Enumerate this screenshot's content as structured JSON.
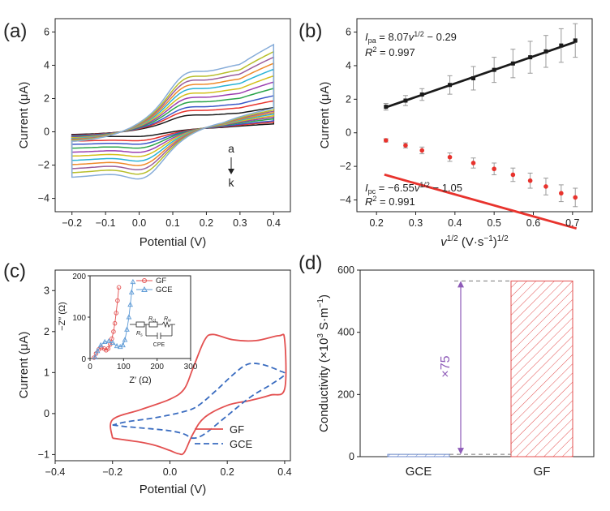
{
  "panels": {
    "a": {
      "label": "(a)"
    },
    "b": {
      "label": "(b)"
    },
    "c": {
      "label": "(c)"
    },
    "d": {
      "label": "(d)"
    }
  },
  "chart_data": [
    {
      "panel": "a",
      "type": "line",
      "xlabel": "Potential (V)",
      "ylabel": "Current (μA)",
      "xlim": [
        -0.25,
        0.45
      ],
      "ylim": [
        -4.8,
        6.8
      ],
      "xticks": [
        "−0.2",
        "−0.1",
        "0.0",
        "0.1",
        "0.2",
        "0.3",
        "0.4"
      ],
      "xtick_values": [
        -0.2,
        -0.1,
        0.0,
        0.1,
        0.2,
        0.3,
        0.4
      ],
      "yticks": [
        "−4",
        "−2",
        "0",
        "2",
        "4",
        "6"
      ],
      "ytick_values": [
        -4,
        -2,
        0,
        2,
        4,
        6
      ],
      "annotation": {
        "top": "a",
        "bottom": "k"
      },
      "curve_colors": [
        "#1a1a1a",
        "#e8332d",
        "#3b57c8",
        "#2aa44a",
        "#9b3fb0",
        "#d3c01b",
        "#2ab3d6",
        "#ee8a2a",
        "#9a5d9c",
        "#b7be2a",
        "#86acd9"
      ],
      "series": [
        {
          "ipa": 1.54,
          "ipc": -0.42
        },
        {
          "ipa": 1.97,
          "ipc": -0.74
        },
        {
          "ipa": 2.3,
          "ipc": -1.0
        },
        {
          "ipa": 2.76,
          "ipc": -1.3
        },
        {
          "ipa": 3.17,
          "ipc": -1.62
        },
        {
          "ipa": 3.56,
          "ipc": -1.93
        },
        {
          "ipa": 3.98,
          "ipc": -2.27
        },
        {
          "ipa": 4.36,
          "ipc": -2.6
        },
        {
          "ipa": 4.75,
          "ipc": -2.92
        },
        {
          "ipa": 5.1,
          "ipc": -3.24
        },
        {
          "ipa": 5.55,
          "ipc": -3.6
        }
      ]
    },
    {
      "panel": "b",
      "type": "scatter",
      "xlabel_base": "v",
      "xlabel_sup1": "1/2",
      "xlabel_mid": " (V·s",
      "xlabel_sup2": "−1",
      "xlabel_end": ")",
      "xlabel_sup3": "1/2",
      "ylabel": "Current (μA)",
      "xlim": [
        0.15,
        0.75
      ],
      "ylim": [
        -4.7,
        6.8
      ],
      "xticks": [
        "0.2",
        "0.3",
        "0.4",
        "0.5",
        "0.6",
        "0.7"
      ],
      "xtick_values": [
        0.2,
        0.3,
        0.4,
        0.5,
        0.6,
        0.7
      ],
      "yticks": [
        "−4",
        "−2",
        "0",
        "2",
        "4",
        "6"
      ],
      "ytick_values": [
        -4,
        -2,
        0,
        2,
        4,
        6
      ],
      "eq_pa": {
        "I": "I",
        "sub": "pa",
        "rest": " = 8.07",
        "v": "v",
        "sup": "1/2",
        "tail": " − 0.29",
        "r2_label": "R",
        "r2_sup": "2",
        "r2_value": " = 0.997"
      },
      "eq_pc": {
        "I": "I",
        "sub": "pc",
        "rest": " = −6.55",
        "v": "v",
        "sup": "1/2",
        "tail": " − 1.05",
        "r2_label": "R",
        "r2_sup": "2",
        "r2_value": " = 0.991"
      },
      "fit_pa": {
        "slope": 8.07,
        "intercept": -0.29,
        "x_range": [
          0.22,
          0.71
        ],
        "color": "#1a1a1a"
      },
      "fit_pc": {
        "slope": -6.55,
        "intercept": -1.05,
        "x_range": [
          0.22,
          0.71
        ],
        "color": "#e8332d"
      },
      "x": [
        0.224,
        0.274,
        0.316,
        0.387,
        0.447,
        0.5,
        0.548,
        0.592,
        0.632,
        0.671,
        0.707
      ],
      "series": [
        {
          "color": "#1a1a1a",
          "values": [
            1.55,
            1.92,
            2.28,
            2.85,
            3.25,
            3.75,
            4.13,
            4.5,
            4.85,
            5.2,
            5.5
          ],
          "errors": [
            0.2,
            0.3,
            0.35,
            0.55,
            0.7,
            0.75,
            0.85,
            0.95,
            0.95,
            1.0,
            1.0
          ]
        },
        {
          "color": "#e8332d",
          "values": [
            -0.45,
            -0.75,
            -1.05,
            -1.45,
            -1.8,
            -2.15,
            -2.5,
            -2.85,
            -3.2,
            -3.6,
            -3.85
          ],
          "errors": [
            0.1,
            0.15,
            0.2,
            0.25,
            0.3,
            0.35,
            0.4,
            0.45,
            0.5,
            0.5,
            0.55
          ]
        }
      ]
    },
    {
      "panel": "c",
      "type": "line",
      "xlabel": "Potential (V)",
      "ylabel": "Current (μA)",
      "xlim": [
        -0.4,
        0.42
      ],
      "ylim": [
        -1.15,
        3.5
      ],
      "xticks": [
        "−0.4",
        "−0.2",
        "0.0",
        "0.2",
        "0.4"
      ],
      "xtick_values": [
        -0.4,
        -0.2,
        0.0,
        0.2,
        0.4
      ],
      "yticks": [
        "−1",
        "0",
        "1",
        "2",
        "3"
      ],
      "ytick_values": [
        -1,
        0,
        1,
        2,
        3
      ],
      "legend": {
        "position": "bottom-right",
        "entries": [
          {
            "name": "GF",
            "color": "#e35050",
            "dash": ""
          },
          {
            "name": "GCE",
            "color": "#3a6cc0",
            "dash": "7,4"
          }
        ]
      },
      "series": [
        {
          "name": "GF",
          "color": "#e35050",
          "points": [
            [
              -0.2,
              -0.6
            ],
            [
              -0.15,
              -0.65
            ],
            [
              -0.1,
              -0.7
            ],
            [
              -0.05,
              -0.78
            ],
            [
              0.0,
              -0.9
            ],
            [
              0.03,
              -0.98
            ],
            [
              0.05,
              -0.95
            ],
            [
              0.08,
              -0.5
            ],
            [
              0.12,
              -0.1
            ],
            [
              0.2,
              0.2
            ],
            [
              0.28,
              0.32
            ],
            [
              0.35,
              0.45
            ],
            [
              0.4,
              0.6
            ],
            [
              0.4,
              1.8
            ],
            [
              0.38,
              1.9
            ],
            [
              0.3,
              1.78
            ],
            [
              0.22,
              1.8
            ],
            [
              0.15,
              1.93
            ],
            [
              0.12,
              1.78
            ],
            [
              0.08,
              1.1
            ],
            [
              0.05,
              0.6
            ],
            [
              0.0,
              0.35
            ],
            [
              -0.1,
              0.1
            ],
            [
              -0.2,
              -0.15
            ],
            [
              -0.2,
              -0.6
            ]
          ]
        },
        {
          "name": "GCE",
          "color": "#3a6cc0",
          "points": [
            [
              -0.2,
              -0.28
            ],
            [
              -0.15,
              -0.32
            ],
            [
              -0.1,
              -0.35
            ],
            [
              0.0,
              -0.42
            ],
            [
              0.05,
              -0.5
            ],
            [
              0.08,
              -0.6
            ],
            [
              0.12,
              -0.5
            ],
            [
              0.2,
              -0.05
            ],
            [
              0.28,
              0.4
            ],
            [
              0.35,
              0.7
            ],
            [
              0.4,
              0.95
            ],
            [
              0.38,
              1.05
            ],
            [
              0.32,
              1.2
            ],
            [
              0.27,
              1.2
            ],
            [
              0.22,
              0.95
            ],
            [
              0.17,
              0.62
            ],
            [
              0.1,
              0.2
            ],
            [
              0.05,
              0.05
            ],
            [
              -0.05,
              -0.1
            ],
            [
              -0.15,
              -0.2
            ],
            [
              -0.2,
              -0.28
            ]
          ]
        }
      ],
      "inset": {
        "xlabel": "Z′ (Ω)",
        "ylabel": "−Z″ (Ω)",
        "xlim": [
          0,
          300
        ],
        "ylim": [
          0,
          200
        ],
        "xticks": [
          "0",
          "100",
          "200",
          "300"
        ],
        "xtick_values": [
          0,
          100,
          200,
          300
        ],
        "yticks": [
          "0",
          "100",
          "200"
        ],
        "ytick_values": [
          0,
          100,
          200
        ],
        "legend": [
          {
            "name": "GF",
            "color": "#e35050",
            "marker": "circle"
          },
          {
            "name": "GCE",
            "color": "#5f9bd6",
            "marker": "triangle"
          }
        ],
        "circuit": {
          "rs": "R",
          "rs_sub": "s",
          "rct": "R",
          "rct_sub": "ct",
          "rw": "R",
          "rw_sub": "w",
          "cpe": "CPE"
        },
        "series": [
          {
            "name": "GF",
            "color": "#e35050",
            "marker": "circle",
            "points": [
              [
                12,
                2
              ],
              [
                18,
                12
              ],
              [
                26,
                22
              ],
              [
                34,
                26
              ],
              [
                42,
                24
              ],
              [
                48,
                20
              ],
              [
                54,
                24
              ],
              [
                60,
                34
              ],
              [
                65,
                48
              ],
              [
                70,
                65
              ],
              [
                74,
                85
              ],
              [
                78,
                110
              ],
              [
                82,
                140
              ],
              [
                86,
                172
              ]
            ]
          },
          {
            "name": "GCE",
            "color": "#5f9bd6",
            "marker": "triangle",
            "points": [
              [
                15,
                3
              ],
              [
                22,
                18
              ],
              [
                32,
                32
              ],
              [
                44,
                40
              ],
              [
                56,
                42
              ],
              [
                68,
                38
              ],
              [
                80,
                30
              ],
              [
                90,
                28
              ],
              [
                98,
                32
              ],
              [
                104,
                45
              ],
              [
                110,
                70
              ],
              [
                116,
                100
              ],
              [
                120,
                130
              ],
              [
                124,
                160
              ],
              [
                128,
                185
              ]
            ]
          }
        ]
      }
    },
    {
      "panel": "d",
      "type": "bar",
      "ylabel_base": "Conductivity (×10",
      "ylabel_sup1": "3",
      "ylabel_mid": " S·m",
      "ylabel_sup2": "−1",
      "ylabel_end": ")",
      "categories": [
        "GCE",
        "GF"
      ],
      "values": [
        7.5,
        565
      ],
      "ylim": [
        0,
        600
      ],
      "yticks": [
        "0",
        "200",
        "400",
        "600"
      ],
      "ytick_values": [
        0,
        200,
        400,
        600
      ],
      "bar_colors": [
        "#6a86c8",
        "#e35050"
      ],
      "annotation": "×75",
      "annotation_color": "#8e5bb8"
    }
  ]
}
